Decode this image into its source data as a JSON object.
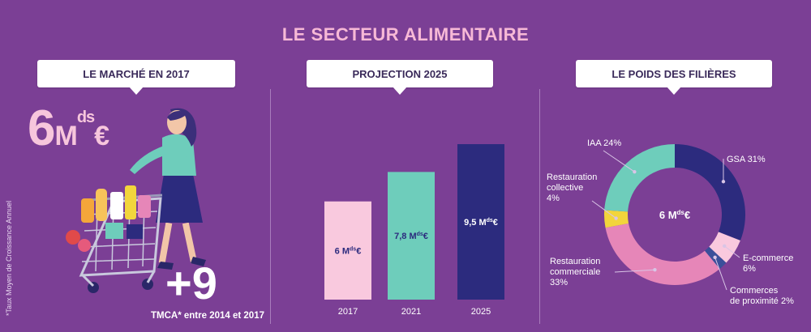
{
  "title": "LE SECTEUR ALIMENTAIRE",
  "panels": {
    "market": {
      "header": "LE MARCHÉ EN 2017",
      "amount": "6",
      "amount_unit": "M",
      "amount_sup": "ds",
      "amount_currency": "€",
      "growth": "+9",
      "growth_caption": "TMCA* entre 2014 et 2017",
      "footnote": "*Taux Moyen de Croissance Annuel"
    },
    "projection": {
      "header": "PROJECTION 2025"
    },
    "weights": {
      "header": "LE POIDS DES FILIÈRES",
      "center_label": "6 M",
      "center_sup": "ds",
      "center_currency": "€"
    }
  },
  "chart_data": [
    {
      "type": "bar",
      "categories": [
        "2017",
        "2021",
        "2025"
      ],
      "values": [
        6,
        7.8,
        9.5
      ],
      "unit": "Mds€",
      "data_labels": [
        "6 M",
        "7,8 M",
        "9,5 M"
      ],
      "data_label_sup": "ds",
      "data_label_currency": "€",
      "colors": [
        "#f9c9de",
        "#6ecdbb",
        "#2c2b7e"
      ],
      "label_colors": [
        "#2c2b7e",
        "#2c2b7e",
        "#ffffff"
      ],
      "ylim": [
        0,
        10
      ]
    },
    {
      "type": "pie",
      "donut": true,
      "start": "top",
      "slices": [
        {
          "label": "GSA 31%",
          "value": 31,
          "color": "#2c2b7e"
        },
        {
          "label": "E-commerce 6%",
          "value": 6,
          "color": "#f9c9de"
        },
        {
          "label": "Commerces de proximité 2%",
          "value": 2,
          "color": "#3b4f9a"
        },
        {
          "label": "Restauration commerciale 33%",
          "value": 33,
          "color": "#e686b8"
        },
        {
          "label": "Restauration collective 4%",
          "value": 4,
          "color": "#f2d53c"
        },
        {
          "label": "IAA 24%",
          "value": 24,
          "color": "#6ecdbb"
        }
      ]
    }
  ],
  "colors": {
    "background": "#7b3f95",
    "title": "#f7b9d6",
    "accent_pink": "#f7c6dc"
  }
}
